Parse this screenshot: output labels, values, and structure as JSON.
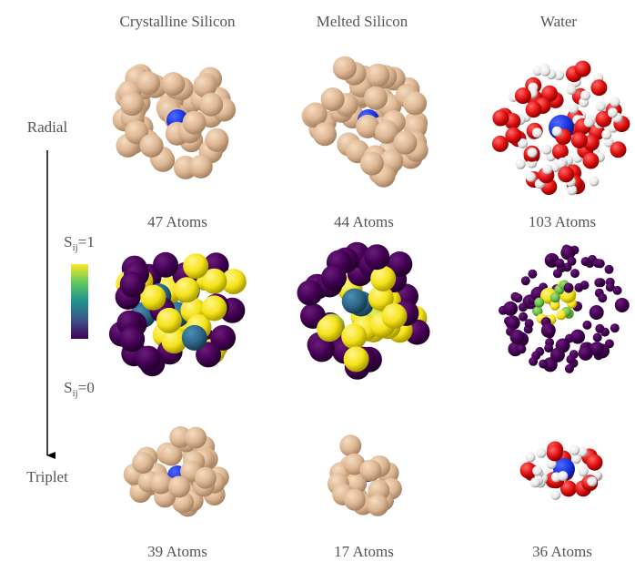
{
  "columns": [
    {
      "title": "Crystalline Silicon",
      "radial_atoms": "47 Atoms",
      "triplet_atoms": "39 Atoms"
    },
    {
      "title": "Melted Silicon",
      "radial_atoms": "44 Atoms",
      "triplet_atoms": "17 Atoms"
    },
    {
      "title": "Water",
      "radial_atoms": "103 Atoms",
      "triplet_atoms": "36 Atoms"
    }
  ],
  "rows": {
    "radial": "Radial",
    "triplet": "Triplet"
  },
  "colorbar": {
    "top": {
      "symbol": "S",
      "subscript": "ij",
      "relation": "=1"
    },
    "bottom": {
      "symbol": "S",
      "subscript": "ij",
      "relation": "=0"
    }
  }
}
